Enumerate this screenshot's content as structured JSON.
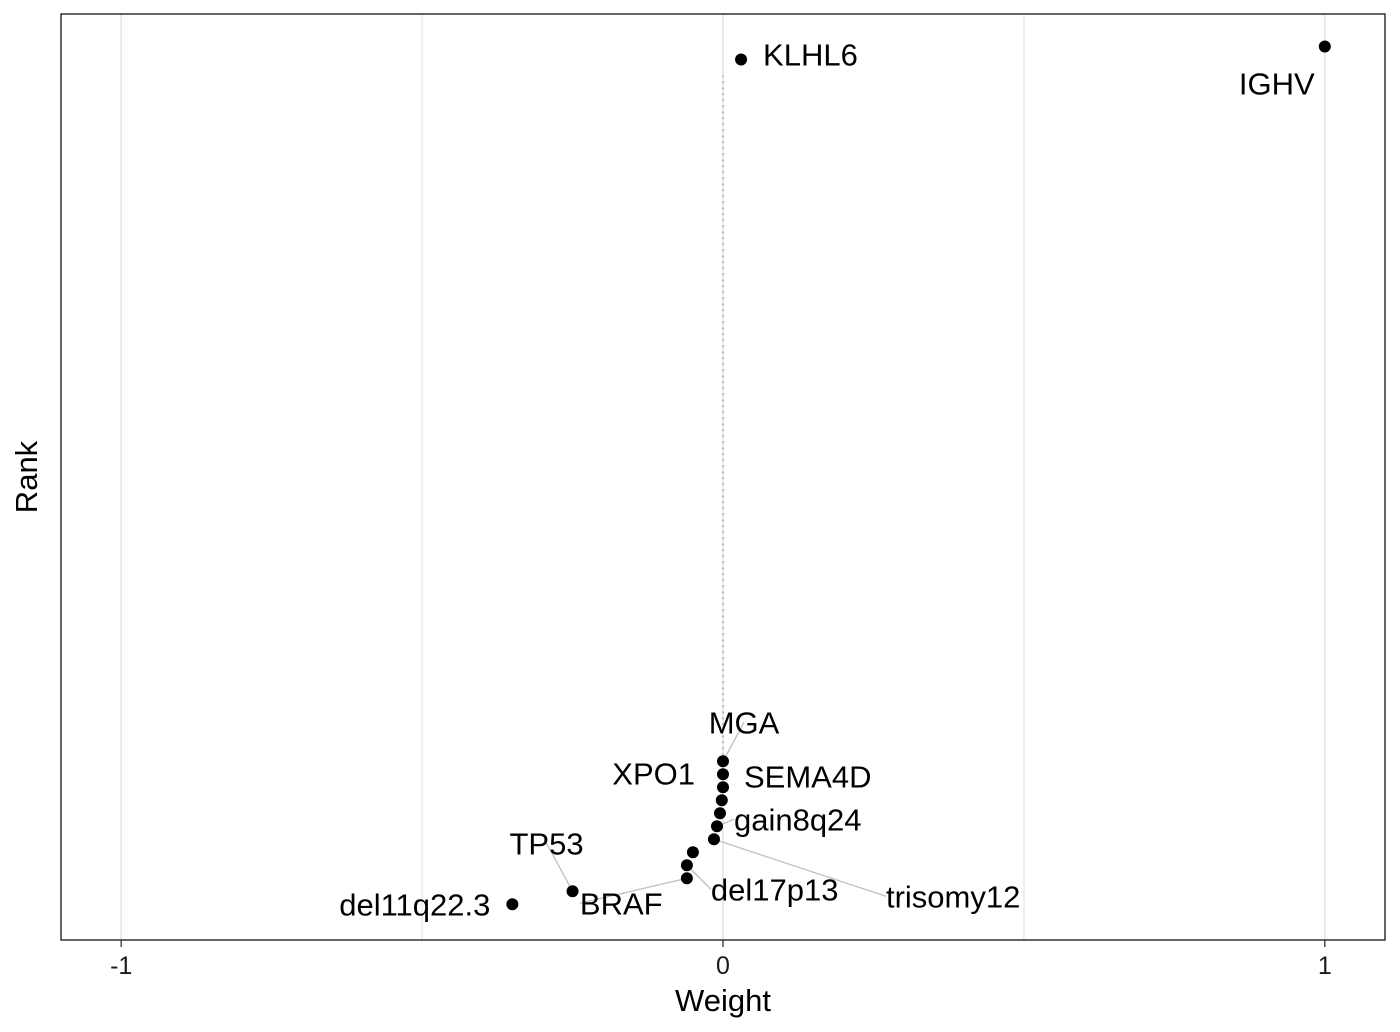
{
  "chart_data": {
    "type": "scatter",
    "title": "",
    "xlabel": "Weight",
    "ylabel": "Rank",
    "xlim": [
      -1.1,
      1.1
    ],
    "ylim": [
      0.25,
      14.5
    ],
    "x_ticks": [
      -1,
      0,
      1
    ],
    "x_tick_labels": [
      "-1",
      "0",
      "1"
    ],
    "x_minor_gridlines": [
      -0.5,
      0.5
    ],
    "y_ticks_shown": false,
    "grid": "vertical only",
    "legend": "none",
    "reference_line": {
      "x": 0,
      "style": "dotted"
    },
    "point_color": "#000000",
    "grid_color": "#e6e6e6",
    "guide_color": "#bfbfbf",
    "points": [
      {
        "label": "IGHV",
        "weight": 1.0,
        "rank": 14
      },
      {
        "label": "KLHL6",
        "weight": 0.03,
        "rank": 13.8
      },
      {
        "label": "MGA",
        "weight": 0.0,
        "rank": 3
      },
      {
        "label": "XPO1",
        "weight": 0.0,
        "rank": 2.8
      },
      {
        "label": "SEMA4D",
        "weight": 0.0,
        "rank": 2.6
      },
      {
        "label": "",
        "weight": -0.002,
        "rank": 2.4
      },
      {
        "label": "",
        "weight": -0.005,
        "rank": 2.2
      },
      {
        "label": "gain8q24",
        "weight": -0.01,
        "rank": 2.0
      },
      {
        "label": "trisomy12",
        "weight": -0.015,
        "rank": 1.8
      },
      {
        "label": "",
        "weight": -0.05,
        "rank": 1.6
      },
      {
        "label": "del17p13",
        "weight": -0.06,
        "rank": 1.4
      },
      {
        "label": "BRAF",
        "weight": -0.06,
        "rank": 1.2
      },
      {
        "label": "TP53",
        "weight": -0.25,
        "rank": 1.0
      },
      {
        "label": "del11q22.3",
        "weight": -0.35,
        "rank": 0.8
      }
    ],
    "labels": [
      {
        "text": "IGHV",
        "point": 0,
        "anchor": "middle",
        "dx": -48,
        "dy": 48,
        "guide": false
      },
      {
        "text": "KLHL6",
        "point": 1,
        "anchor": "start",
        "dx": 22,
        "dy": 6,
        "guide": false
      },
      {
        "text": "MGA",
        "point": 2,
        "anchor": "middle",
        "dx": 21,
        "dy": -28,
        "guide": true
      },
      {
        "text": "XPO1",
        "point": 3,
        "anchor": "end",
        "dx": -28,
        "dy": 10,
        "guide": false
      },
      {
        "text": "SEMA4D",
        "point": 4,
        "anchor": "start",
        "dx": 21,
        "dy": 0,
        "guide": false
      },
      {
        "text": "gain8q24",
        "point": 7,
        "anchor": "start",
        "dx": 17,
        "dy": 4,
        "guide": true
      },
      {
        "text": "trisomy12",
        "point": 8,
        "anchor": "start",
        "dx": 172,
        "dy": 68,
        "guide": true
      },
      {
        "text": "del17p13",
        "point": 10,
        "anchor": "start",
        "dx": 24,
        "dy": 35,
        "guide": true
      },
      {
        "text": "BRAF",
        "point": 11,
        "anchor": "start",
        "dx": -107,
        "dy": 36,
        "guide": true
      },
      {
        "text": "TP53",
        "point": 12,
        "anchor": "middle",
        "dx": -26,
        "dy": -37,
        "guide": true
      },
      {
        "text": "del11q22.3",
        "point": 13,
        "anchor": "end",
        "dx": -22,
        "dy": 11,
        "guide": false
      }
    ]
  }
}
